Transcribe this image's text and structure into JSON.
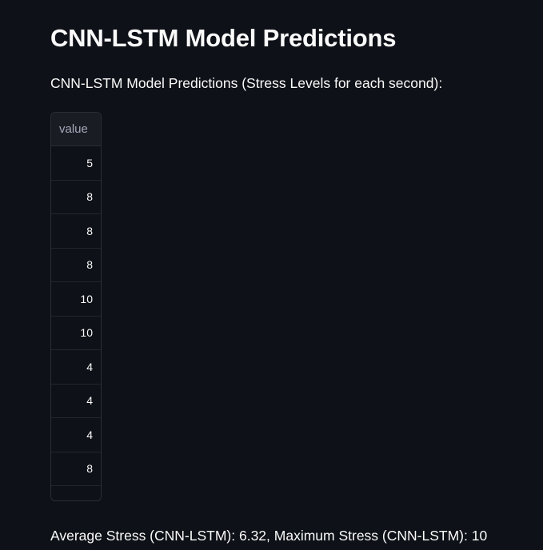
{
  "page": {
    "title": "CNN-LSTM Model Predictions",
    "caption": "CNN-LSTM Model Predictions (Stress Levels for each second):",
    "summary": "Average Stress (CNN-LSTM): 6.32, Maximum Stress (CNN-LSTM): 10"
  },
  "table": {
    "column_header": "value",
    "rows": [
      "5",
      "8",
      "8",
      "8",
      "10",
      "10",
      "4",
      "4",
      "4",
      "8"
    ]
  }
}
